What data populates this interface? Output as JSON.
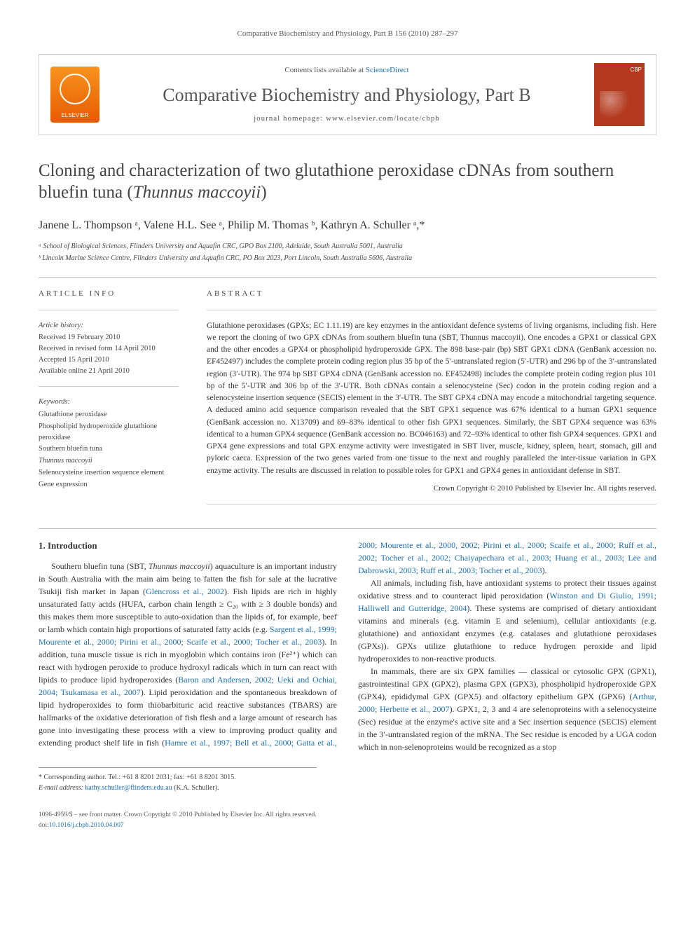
{
  "runningHead": "Comparative Biochemistry and Physiology, Part B 156 (2010) 287–297",
  "masthead": {
    "elsevierLabel": "ELSEVIER",
    "contentsPrefix": "Contents lists available at ",
    "contentsLink": "ScienceDirect",
    "journalName": "Comparative Biochemistry and Physiology, Part B",
    "homepagePrefix": "journal homepage: ",
    "homepageUrl": "www.elsevier.com/locate/cbpb",
    "coverTag": "CBP"
  },
  "title": {
    "pre": "Cloning and characterization of two glutathione peroxidase cDNAs from southern bluefin tuna (",
    "species": "Thunnus maccoyii",
    "post": ")"
  },
  "authorsLine": "Janene L. Thompson ᵃ, Valene H.L. See ᵃ, Philip M. Thomas ᵇ, Kathryn A. Schuller ᵃ,*",
  "affiliations": [
    "ᵃ School of Biological Sciences, Flinders University and Aquafin CRC, GPO Box 2100, Adelaide, South Australia 5001, Australia",
    "ᵇ Lincoln Marine Science Centre, Flinders University and Aquafin CRC, PO Box 2023, Port Lincoln, South Australia 5606, Australia"
  ],
  "articleInfo": {
    "head": "ARTICLE INFO",
    "historyHead": "Article history:",
    "history": [
      "Received 19 February 2010",
      "Received in revised form 14 April 2010",
      "Accepted 15 April 2010",
      "Available online 21 April 2010"
    ],
    "keywordsHead": "Keywords:",
    "keywords": [
      "Glutathione peroxidase",
      "Phospholipid hydroperoxide glutathione peroxidase",
      "Southern bluefin tuna",
      "Thunnus maccoyii",
      "Selenocysteine insertion sequence element",
      "Gene expression"
    ]
  },
  "abstract": {
    "head": "ABSTRACT",
    "text": "Glutathione peroxidases (GPXs; EC 1.11.19) are key enzymes in the antioxidant defence systems of living organisms, including fish. Here we report the cloning of two GPX cDNAs from southern bluefin tuna (SBT, Thunnus maccoyii). One encodes a GPX1 or classical GPX and the other encodes a GPX4 or phospholipid hydroperoxide GPX. The 898 base-pair (bp) SBT GPX1 cDNA (GenBank accession no. EF452497) includes the complete protein coding region plus 35 bp of the 5′-untranslated region (5′-UTR) and 296 bp of the 3′-untranslated region (3′-UTR). The 974 bp SBT GPX4 cDNA (GenBank accession no. EF452498) includes the complete protein coding region plus 101 bp of the 5′-UTR and 306 bp of the 3′-UTR. Both cDNAs contain a selenocysteine (Sec) codon in the protein coding region and a selenocysteine insertion sequence (SECIS) element in the 3′-UTR. The SBT GPX4 cDNA may encode a mitochondrial targeting sequence. A deduced amino acid sequence comparison revealed that the SBT GPX1 sequence was 67% identical to a human GPX1 sequence (GenBank accession no. X13709) and 69–83% identical to other fish GPX1 sequences. Similarly, the SBT GPX4 sequence was 63% identical to a human GPX4 sequence (GenBank accession no. BC046163) and 72–93% identical to other fish GPX4 sequences. GPX1 and GPX4 gene expressions and total GPX enzyme activity were investigated in SBT liver, muscle, kidney, spleen, heart, stomach, gill and pyloric caeca. Expression of the two genes varied from one tissue to the next and roughly paralleled the inter-tissue variation in GPX enzyme activity. The results are discussed in relation to possible roles for GPX1 and GPX4 genes in antioxidant defense in SBT.",
    "crown": "Crown Copyright © 2010 Published by Elsevier Inc. All rights reserved."
  },
  "intro": {
    "head": "1. Introduction",
    "p1a": "Southern bluefin tuna (SBT, ",
    "p1species": "Thunnus maccoyii",
    "p1b": ") aquaculture is an important industry in South Australia with the main aim being to fatten the fish for sale at the lucrative Tsukiji fish market in Japan (",
    "p1c1": "Glencross et al., 2002",
    "p1c": "). Fish lipids are rich in highly unsaturated fatty acids (HUFA, carbon chain length ≥ C₂₀ with ≥ 3 double bonds) and this makes them more susceptible to auto-oxidation than the lipids of, for example, beef or lamb which contain high proportions of saturated fatty acids (e.g. ",
    "p1c2": "Sargent et al., 1999; Mourente et al., 2000; Pirini et al., 2000; Scaife et al., 2000; Tocher et al., 2003",
    "p1d": "). In addition, tuna muscle tissue is rich in myoglobin which contains iron (Fe²⁺) which can react with hydrogen peroxide to produce hydroxyl radicals which in turn can react with lipids to produce lipid hydroperoxides (",
    "p1c3": "Baron and Andersen, 2002; Ueki and Ochiai, 2004; Tsukamasa et al., 2007",
    "p1e": "). Lipid peroxidation and the spontaneous breakdown of lipid hydroperoxides to form thiobarbituric acid reactive substances (TBARS) are hallmarks of the oxidative deterioration of fish flesh and a large amount of research has gone into investigating these process with a view to improving product quality and extending product shelf life in fish (",
    "p1c4": "Hamre et al., 1997; Bell et al., 2000; Gatta et al., 2000; Mourente et al., 2000, 2002; Pirini et al., 2000; Scaife et al., 2000; Ruff et al., 2002; Tocher et al., 2002; Chaiyapechara et al., 2003; Huang et al., 2003; Lee and Dabrowski, 2003; Ruff et al., 2003; Tocher et al., 2003",
    "p1f": ").",
    "p2a": "All animals, including fish, have antioxidant systems to protect their tissues against oxidative stress and to counteract lipid peroxidation (",
    "p2c1": "Winston and Di Giulio, 1991; Halliwell and Gutteridge, 2004",
    "p2b": "). These systems are comprised of dietary antioxidant vitamins and minerals (e.g. vitamin E and selenium), cellular antioxidants (e.g. glutathione) and antioxidant enzymes (e.g. catalases and glutathione peroxidases (GPXs)). GPXs utilize glutathione to reduce hydrogen peroxide and lipid hydroperoxides to non-reactive products.",
    "p3a": "In mammals, there are six GPX families — classical or cytosolic GPX (GPX1), gastrointestinal GPX (GPX2), plasma GPX (GPX3), phospholipid hydroperoxide GPX (GPX4), epididymal GPX (GPX5) and olfactory epithelium GPX (GPX6) (",
    "p3c1": "Arthur, 2000; Herbette et al., 2007",
    "p3b": "). GPX1, 2, 3 and 4 are selenoproteins with a selenocysteine (Sec) residue at the enzyme's active site and a Sec insertion sequence (SECIS) element in the 3′-untranslated region of the mRNA. The Sec residue is encoded by a UGA codon which in non-selenoproteins would be recognized as a stop"
  },
  "corresponding": {
    "line1": "* Corresponding author. Tel.: +61 8 8201 2031; fax: +61 8 8201 3015.",
    "line2pre": "E-mail address: ",
    "email": "kathy.schuller@flinders.edu.au",
    "line2post": " (K.A. Schuller)."
  },
  "footer": {
    "line1": "1096-4959/$ – see front matter. Crown Copyright © 2010 Published by Elsevier Inc. All rights reserved.",
    "doiPrefix": "doi:",
    "doi": "10.1016/j.cbpb.2010.04.007"
  },
  "colors": {
    "link": "#1a6fb5",
    "rule": "#bbbbbb",
    "text": "#333333",
    "muted": "#555555",
    "elsevierGrad1": "#f7931e",
    "elsevierGrad2": "#e85a00",
    "coverBg": "#b33a1f"
  }
}
